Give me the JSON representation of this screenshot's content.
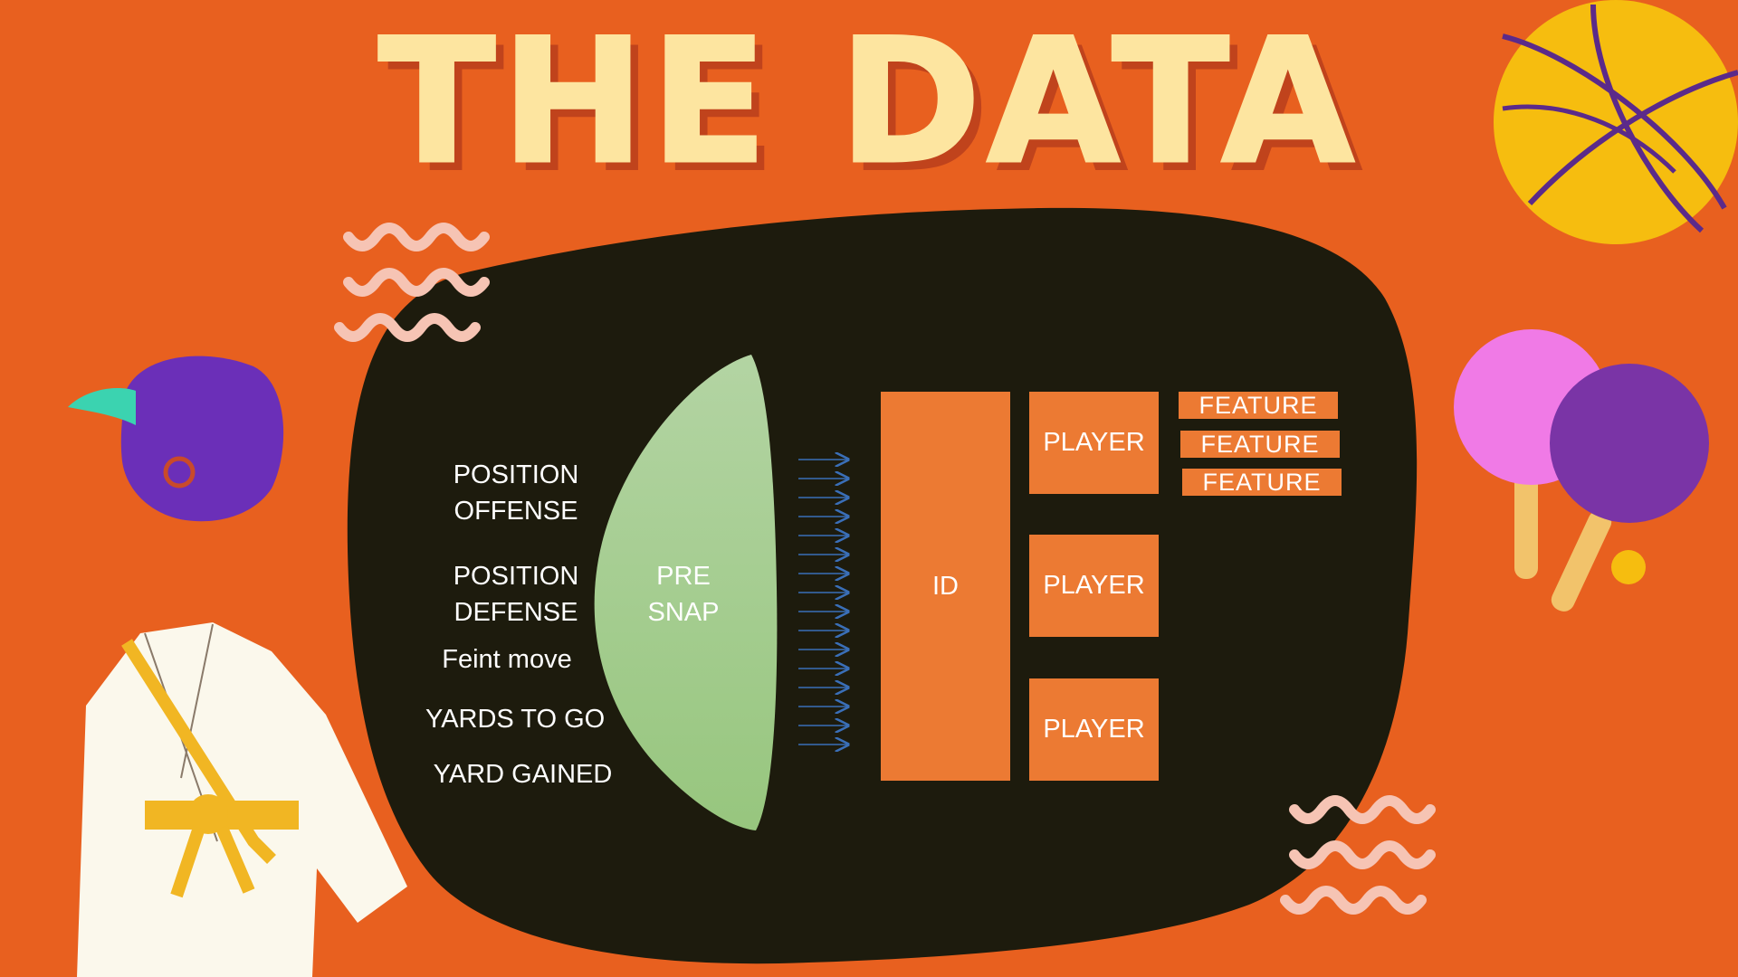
{
  "slide": {
    "title": "THE DATA",
    "inputs": [
      {
        "line1": "POSITION",
        "line2": "OFFENSE"
      },
      {
        "line1": "POSITION",
        "line2": "DEFENSE"
      },
      {
        "line1": "Feint move"
      },
      {
        "line1": "YARDS TO GO"
      },
      {
        "line1": "YARD GAINED"
      }
    ],
    "lens": {
      "line1": "PRE",
      "line2": "SNAP"
    },
    "id_block": "ID",
    "players": [
      "PLAYER",
      "PLAYER",
      "PLAYER"
    ],
    "features": [
      "FEATURE",
      "FEATURE",
      "FEATURE"
    ]
  },
  "colors": {
    "background": "#e8601f",
    "blob": "#1d1b0d",
    "title": "#fde5a0",
    "title_shadow": "#c0431c",
    "box": "#ec7a33",
    "lens_top": "#b3d4a3",
    "lens_bottom": "#97c67e",
    "arrow": "#3a6fb8"
  },
  "icons": [
    "basketball-icon",
    "ping-pong-paddles-icon",
    "helmet-icon",
    "karate-gi-icon",
    "squiggle-decoration-icon"
  ]
}
